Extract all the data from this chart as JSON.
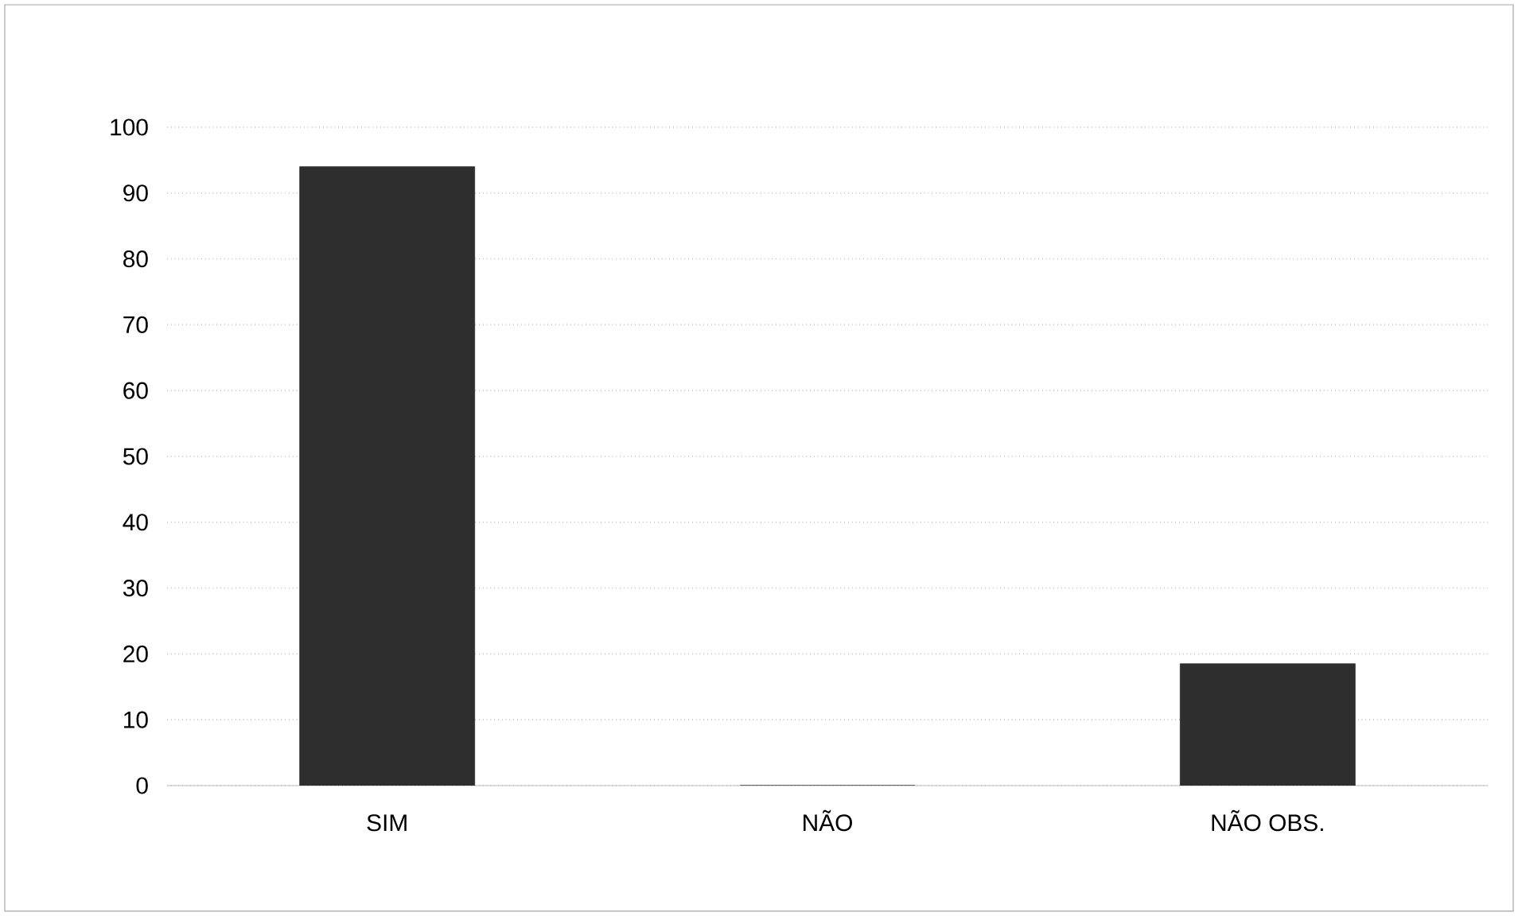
{
  "chart_data": {
    "type": "bar",
    "categories": [
      "SIM",
      "NÃO",
      "NÃO OBS."
    ],
    "values": [
      94,
      0,
      18.5
    ],
    "color": "#2e2e2e",
    "ylim": [
      0,
      100
    ],
    "yticks": [
      0,
      10,
      20,
      30,
      40,
      50,
      60,
      70,
      80,
      90,
      100
    ],
    "grid": "y"
  }
}
